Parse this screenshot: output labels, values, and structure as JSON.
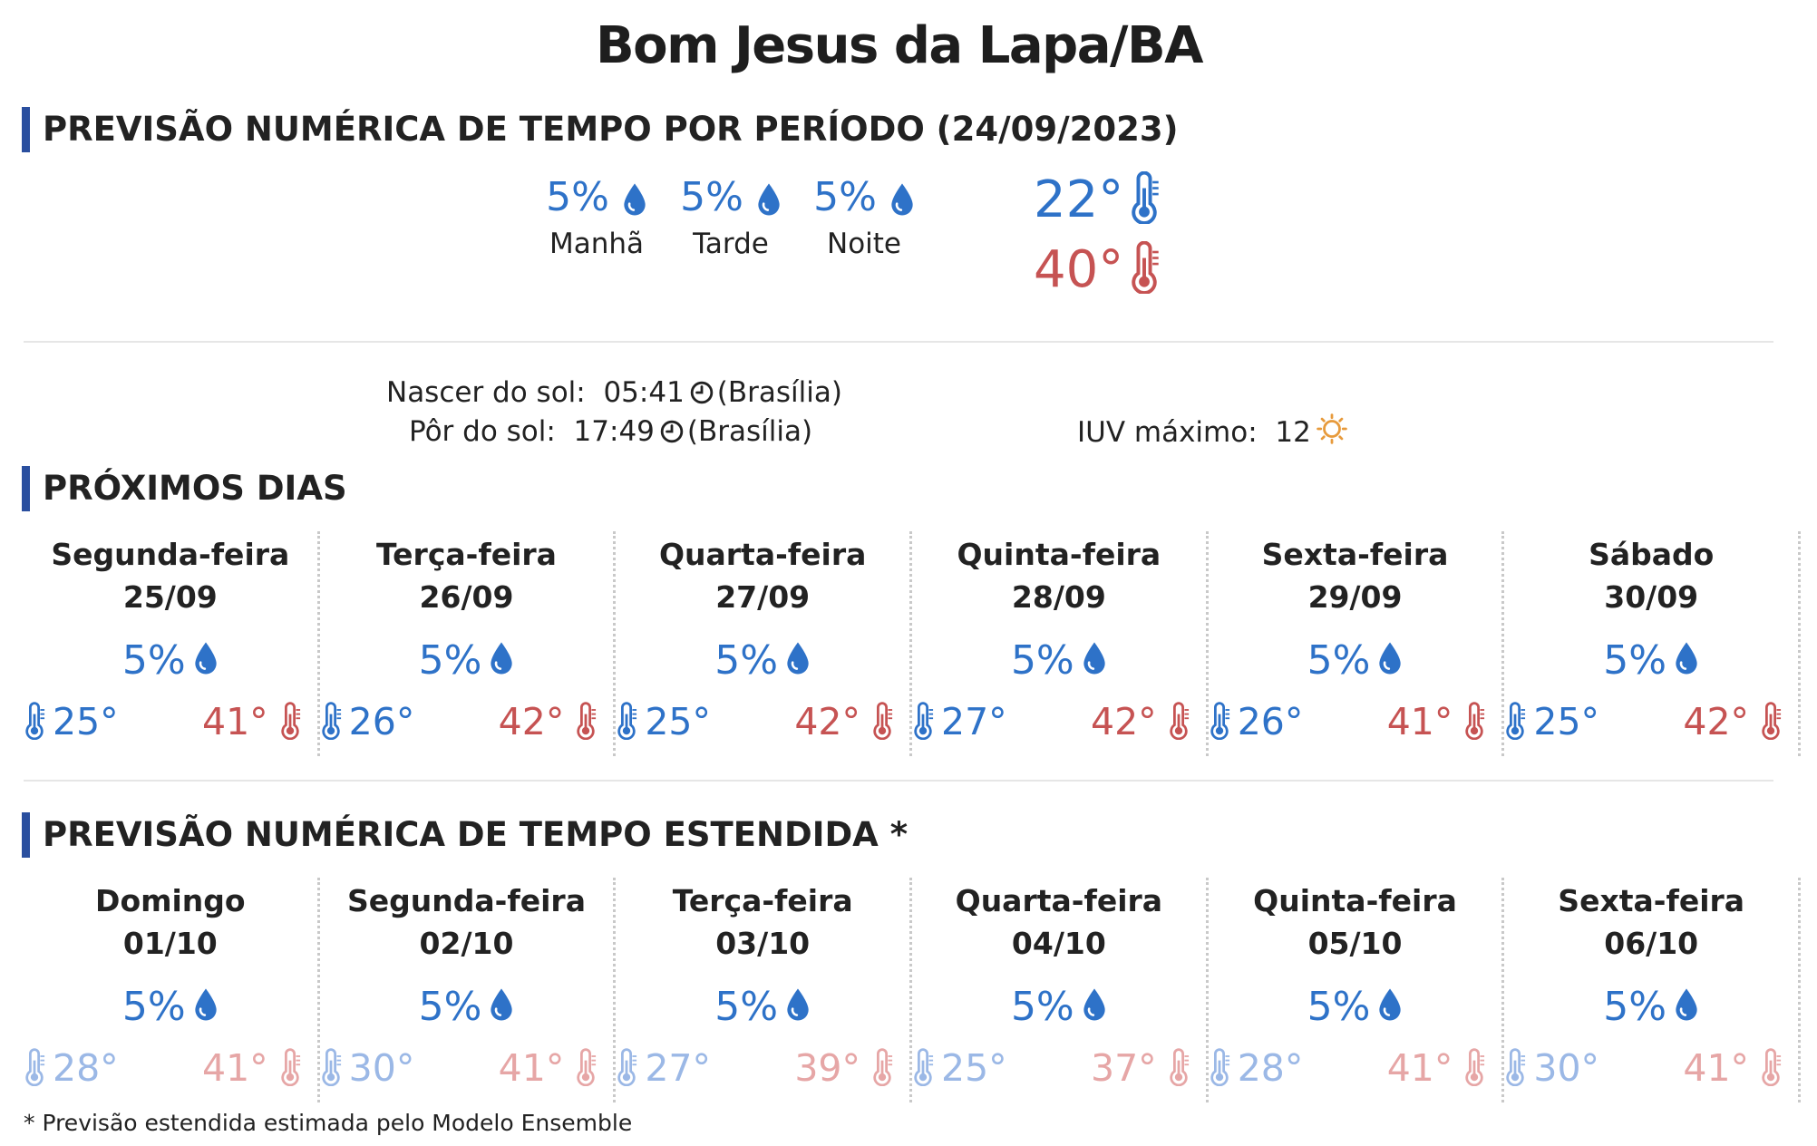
{
  "header": {
    "city": "Bom Jesus da Lapa/BA"
  },
  "today": {
    "section_title": "PREVISÃO NUMÉRICA DE TEMPO POR PERÍODO (24/09/2023)",
    "periods": [
      {
        "pct": "5%",
        "label": "Manhã"
      },
      {
        "pct": "5%",
        "label": "Tarde"
      },
      {
        "pct": "5%",
        "label": "Noite"
      }
    ],
    "temp_min": "22°",
    "temp_max": "40°",
    "sunrise_label": "Nascer do sol:",
    "sunrise_time": "05:41",
    "sunset_label": "Pôr do sol:",
    "sunset_time": "17:49",
    "timezone": "(Brasília)",
    "uv_label": "IUV máximo:",
    "uv_value": "12"
  },
  "next_days": {
    "section_title": "PRÓXIMOS DIAS",
    "days": [
      {
        "name": "Segunda-feira",
        "date": "25/09",
        "pct": "5%",
        "min": "25°",
        "max": "41°"
      },
      {
        "name": "Terça-feira",
        "date": "26/09",
        "pct": "5%",
        "min": "26°",
        "max": "42°"
      },
      {
        "name": "Quarta-feira",
        "date": "27/09",
        "pct": "5%",
        "min": "25°",
        "max": "42°"
      },
      {
        "name": "Quinta-feira",
        "date": "28/09",
        "pct": "5%",
        "min": "27°",
        "max": "42°"
      },
      {
        "name": "Sexta-feira",
        "date": "29/09",
        "pct": "5%",
        "min": "26°",
        "max": "41°"
      },
      {
        "name": "Sábado",
        "date": "30/09",
        "pct": "5%",
        "min": "25°",
        "max": "42°"
      }
    ]
  },
  "extended": {
    "section_title": "PREVISÃO NUMÉRICA DE TEMPO ESTENDIDA *",
    "days": [
      {
        "name": "Domingo",
        "date": "01/10",
        "pct": "5%",
        "min": "28°",
        "max": "41°"
      },
      {
        "name": "Segunda-feira",
        "date": "02/10",
        "pct": "5%",
        "min": "30°",
        "max": "41°"
      },
      {
        "name": "Terça-feira",
        "date": "03/10",
        "pct": "5%",
        "min": "27°",
        "max": "39°"
      },
      {
        "name": "Quarta-feira",
        "date": "04/10",
        "pct": "5%",
        "min": "25°",
        "max": "37°"
      },
      {
        "name": "Quinta-feira",
        "date": "05/10",
        "pct": "5%",
        "min": "28°",
        "max": "41°"
      },
      {
        "name": "Sexta-feira",
        "date": "06/10",
        "pct": "5%",
        "min": "30°",
        "max": "41°"
      }
    ],
    "footnote": "* Previsão estendida estimada pelo Modelo Ensemble"
  },
  "icons": {
    "rain": "drop-icon",
    "thermometer": "thermometer-icon",
    "clock": "clock-icon",
    "uv": "sun-icon"
  },
  "colors": {
    "accent_bar": "#2a4f9f",
    "rain_blue": "#2e72c8",
    "temp_min": "#2e72c8",
    "temp_max": "#c65353",
    "ext_min": "#9bb8e6",
    "ext_max": "#e6a6a6",
    "uv_orange": "#e79a3b"
  }
}
